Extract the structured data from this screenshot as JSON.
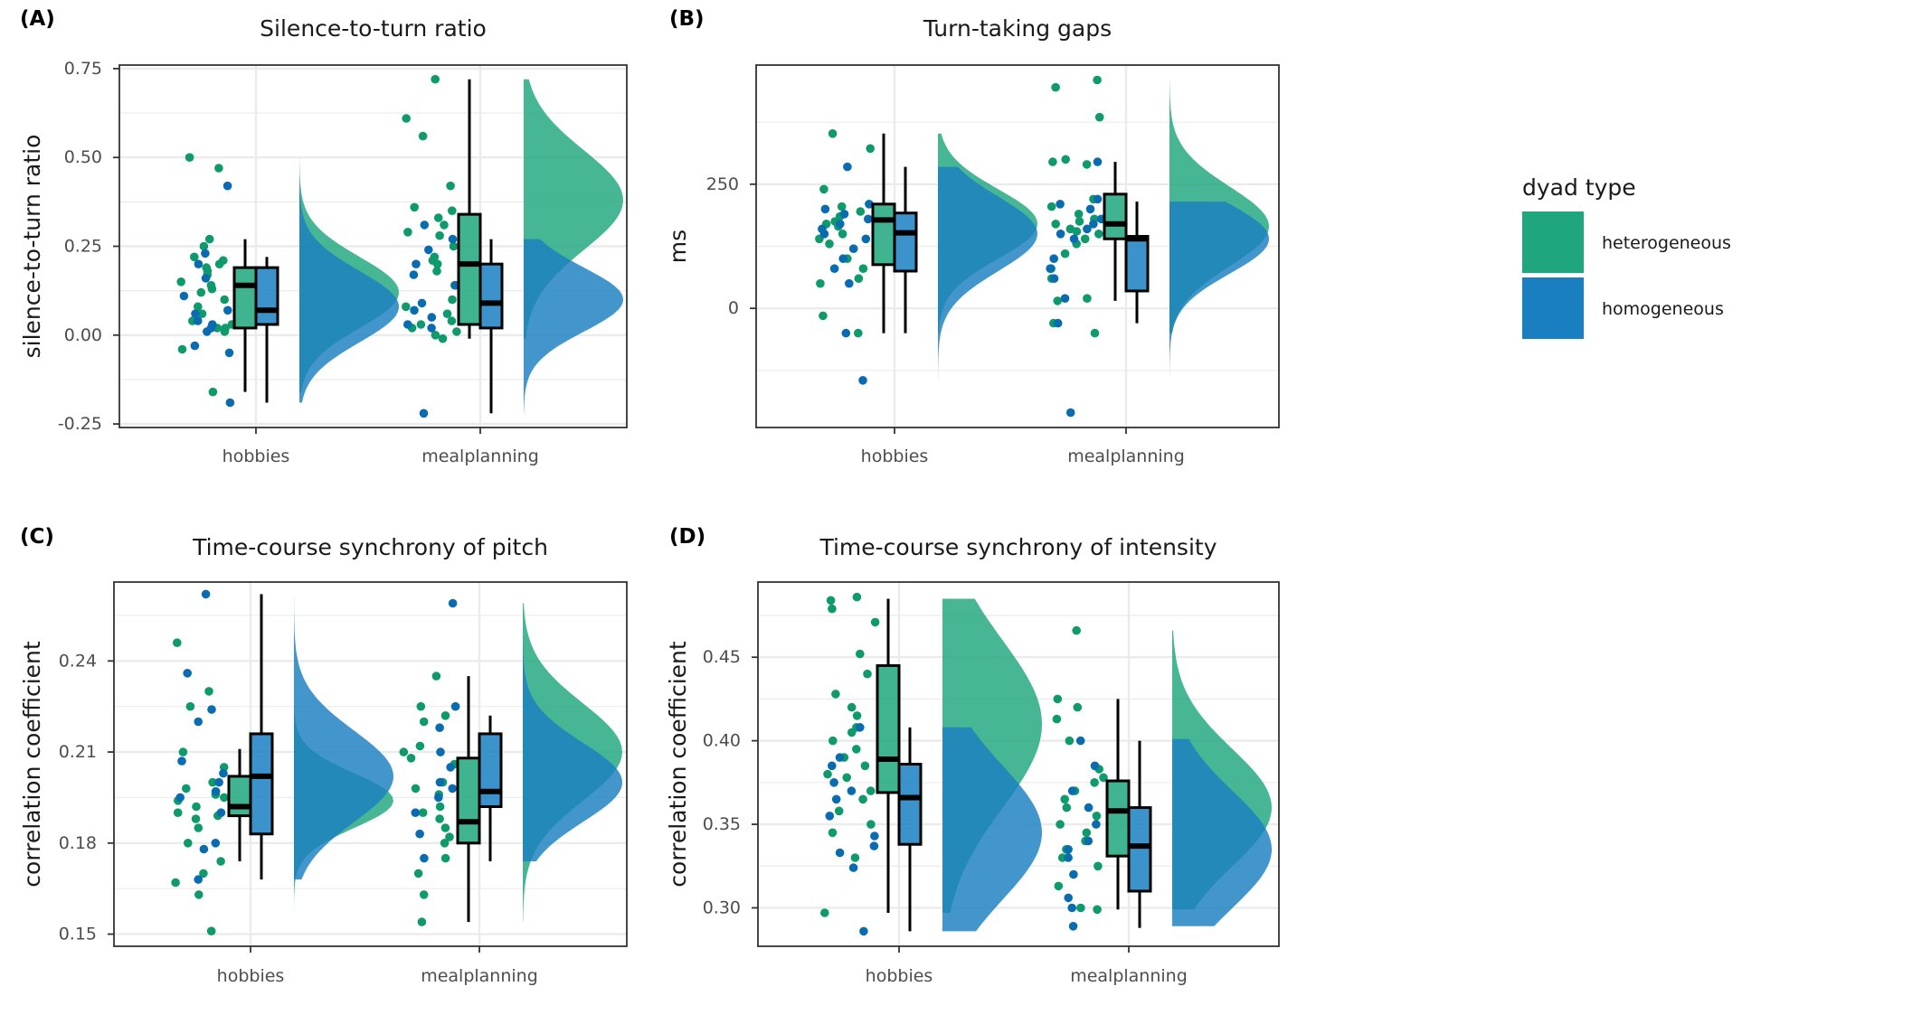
{
  "colors": {
    "heterogeneous": "#1fa67e",
    "homogeneous": "#1a7fc1",
    "point_het": "#0e9a6c",
    "point_hom": "#0a6cb0"
  },
  "legend": {
    "title": "dyad type",
    "items": [
      {
        "label": "heterogeneous",
        "color": "#1fa67e"
      },
      {
        "label": "homogeneous",
        "color": "#1a7fc1"
      }
    ]
  },
  "chart_data": [
    {
      "tag": "(A)",
      "type": "raincloud",
      "title": "Silence-to-turn ratio",
      "xlabel": "",
      "ylabel": "silence-to-turn ratio",
      "categories": [
        "hobbies",
        "mealplanning"
      ],
      "ylim": [
        -0.26,
        0.76
      ],
      "yticks": [
        -0.25,
        0.0,
        0.25,
        0.5,
        0.75
      ],
      "tick_labels": [
        "-0.25",
        "0.00",
        "0.25",
        "0.50",
        "0.75"
      ],
      "series": [
        {
          "name": "heterogeneous",
          "box": [
            {
              "min": -0.16,
              "q1": 0.02,
              "median": 0.14,
              "q3": 0.19,
              "max": 0.27
            },
            {
              "min": -0.01,
              "q1": 0.03,
              "median": 0.2,
              "q3": 0.34,
              "max": 0.72
            }
          ],
          "density": [
            {
              "min": -0.16,
              "max": 0.5,
              "peak": 0.12,
              "sd": 0.1
            },
            {
              "min": -0.01,
              "max": 0.72,
              "peak": 0.38,
              "sd": 0.14
            }
          ],
          "points": [
            [
              0.5,
              0.47,
              0.27,
              0.25,
              0.22,
              0.21,
              0.2,
              0.19,
              0.18,
              0.17,
              0.15,
              0.14,
              0.13,
              0.12,
              0.1,
              0.08,
              0.06,
              0.04,
              0.03,
              0.02,
              0.02,
              0.01,
              -0.04,
              -0.16
            ],
            [
              0.72,
              0.61,
              0.56,
              0.42,
              0.36,
              0.35,
              0.33,
              0.31,
              0.29,
              0.28,
              0.25,
              0.22,
              0.21,
              0.2,
              0.18,
              0.14,
              0.1,
              0.08,
              0.06,
              0.04,
              0.03,
              0.02,
              0.01,
              0.0,
              -0.01
            ]
          ]
        },
        {
          "name": "homogeneous",
          "box": [
            {
              "min": -0.19,
              "q1": 0.03,
              "median": 0.07,
              "q3": 0.19,
              "max": 0.22
            },
            {
              "min": -0.22,
              "q1": 0.02,
              "median": 0.09,
              "q3": 0.2,
              "max": 0.27
            }
          ],
          "density": [
            {
              "min": -0.19,
              "max": 0.42,
              "peak": 0.08,
              "sd": 0.1
            },
            {
              "min": -0.22,
              "max": 0.27,
              "peak": 0.1,
              "sd": 0.09
            }
          ],
          "points": [
            [
              0.42,
              0.23,
              0.2,
              0.16,
              0.11,
              0.07,
              0.06,
              0.04,
              0.03,
              0.02,
              0.01,
              -0.03,
              -0.05,
              -0.19
            ],
            [
              0.31,
              0.27,
              0.24,
              0.2,
              0.17,
              0.14,
              0.09,
              0.07,
              0.05,
              0.03,
              0.02,
              -0.22
            ]
          ]
        }
      ]
    },
    {
      "tag": "(B)",
      "type": "raincloud",
      "title": "Turn-taking gaps",
      "xlabel": "",
      "ylabel": "ms",
      "categories": [
        "hobbies",
        "mealplanning"
      ],
      "ylim": [
        -240,
        490
      ],
      "yticks": [
        0,
        250
      ],
      "tick_labels": [
        "0",
        "250"
      ],
      "series": [
        {
          "name": "heterogeneous",
          "box": [
            {
              "min": -50,
              "q1": 88,
              "median": 178,
              "q3": 210,
              "max": 352
            },
            {
              "min": 15,
              "q1": 140,
              "median": 170,
              "q3": 230,
              "max": 295
            }
          ],
          "density": [
            {
              "min": -50,
              "max": 352,
              "peak": 170,
              "sd": 70
            },
            {
              "min": -50,
              "max": 460,
              "peak": 165,
              "sd": 80
            }
          ],
          "points": [
            [
              352,
              322,
              240,
              205,
              195,
              185,
              175,
              170,
              165,
              150,
              140,
              130,
              100,
              80,
              60,
              50,
              -15,
              -50
            ],
            [
              460,
              445,
              385,
              300,
              295,
              290,
              220,
              205,
              190,
              180,
              175,
              170,
              160,
              155,
              150,
              140,
              130,
              110,
              80,
              60,
              20,
              15,
              -30,
              -50
            ]
          ]
        },
        {
          "name": "homogeneous",
          "box": [
            {
              "min": -50,
              "q1": 75,
              "median": 152,
              "q3": 192,
              "max": 285
            },
            {
              "min": -30,
              "q1": 35,
              "median": 140,
              "q3": 145,
              "max": 215
            }
          ],
          "density": [
            {
              "min": -145,
              "max": 285,
              "peak": 150,
              "sd": 75
            },
            {
              "min": -210,
              "max": 215,
              "peak": 140,
              "sd": 70
            }
          ],
          "points": [
            [
              285,
              210,
              200,
              190,
              180,
              170,
              160,
              150,
              140,
              120,
              100,
              80,
              50,
              -50,
              -145
            ],
            [
              295,
              220,
              210,
              200,
              180,
              170,
              160,
              150,
              140,
              100,
              80,
              60,
              20,
              -30,
              -210
            ]
          ]
        }
      ]
    },
    {
      "tag": "(C)",
      "type": "raincloud",
      "title": "Time-course synchrony of pitch",
      "xlabel": "",
      "ylabel": "correlation coefficient",
      "categories": [
        "hobbies",
        "mealplanning"
      ],
      "ylim": [
        0.146,
        0.266
      ],
      "yticks": [
        0.15,
        0.18,
        0.21,
        0.24
      ],
      "tick_labels": [
        "0.15",
        "0.18",
        "0.21",
        "0.24"
      ],
      "series": [
        {
          "name": "heterogeneous",
          "box": [
            {
              "min": 0.174,
              "q1": 0.189,
              "median": 0.192,
              "q3": 0.202,
              "max": 0.211
            },
            {
              "min": 0.154,
              "q1": 0.18,
              "median": 0.187,
              "q3": 0.208,
              "max": 0.235
            }
          ],
          "density": [
            {
              "min": 0.151,
              "max": 0.246,
              "peak": 0.194,
              "sd": 0.009
            },
            {
              "min": 0.154,
              "max": 0.259,
              "peak": 0.21,
              "sd": 0.016
            }
          ],
          "points": [
            [
              0.246,
              0.23,
              0.225,
              0.21,
              0.205,
              0.2,
              0.198,
              0.196,
              0.195,
              0.194,
              0.192,
              0.19,
              0.189,
              0.188,
              0.185,
              0.18,
              0.174,
              0.17,
              0.167,
              0.163,
              0.151
            ],
            [
              0.235,
              0.225,
              0.222,
              0.22,
              0.212,
              0.21,
              0.208,
              0.206,
              0.2,
              0.198,
              0.196,
              0.192,
              0.19,
              0.188,
              0.185,
              0.182,
              0.18,
              0.175,
              0.17,
              0.163,
              0.154
            ]
          ]
        },
        {
          "name": "homogeneous",
          "box": [
            {
              "min": 0.168,
              "q1": 0.183,
              "median": 0.202,
              "q3": 0.216,
              "max": 0.262
            },
            {
              "min": 0.174,
              "q1": 0.192,
              "median": 0.197,
              "q3": 0.216,
              "max": 0.222
            }
          ],
          "density": [
            {
              "min": 0.168,
              "max": 0.262,
              "peak": 0.202,
              "sd": 0.015
            },
            {
              "min": 0.174,
              "max": 0.259,
              "peak": 0.2,
              "sd": 0.013
            }
          ],
          "points": [
            [
              0.262,
              0.236,
              0.224,
              0.22,
              0.207,
              0.203,
              0.2,
              0.197,
              0.195,
              0.19,
              0.18,
              0.178,
              0.168
            ],
            [
              0.259,
              0.225,
              0.218,
              0.21,
              0.205,
              0.2,
              0.198,
              0.195,
              0.19,
              0.183,
              0.175
            ]
          ]
        }
      ]
    },
    {
      "tag": "(D)",
      "type": "raincloud",
      "title": "Time-course synchrony of intensity",
      "xlabel": "",
      "ylabel": "correlation coefficient",
      "categories": [
        "hobbies",
        "mealplanning"
      ],
      "ylim": [
        0.277,
        0.495
      ],
      "yticks": [
        0.3,
        0.35,
        0.4,
        0.45
      ],
      "tick_labels": [
        "0.30",
        "0.35",
        "0.40",
        "0.45"
      ],
      "series": [
        {
          "name": "heterogeneous",
          "box": [
            {
              "min": 0.297,
              "q1": 0.369,
              "median": 0.389,
              "q3": 0.445,
              "max": 0.485
            },
            {
              "min": 0.299,
              "q1": 0.331,
              "median": 0.358,
              "q3": 0.376,
              "max": 0.425
            }
          ],
          "density": [
            {
              "min": 0.297,
              "max": 0.485,
              "peak": 0.41,
              "sd": 0.05
            },
            {
              "min": 0.299,
              "max": 0.466,
              "peak": 0.36,
              "sd": 0.035
            }
          ],
          "points": [
            [
              0.486,
              0.484,
              0.479,
              0.471,
              0.452,
              0.44,
              0.428,
              0.42,
              0.415,
              0.408,
              0.405,
              0.4,
              0.395,
              0.39,
              0.385,
              0.38,
              0.378,
              0.37,
              0.365,
              0.358,
              0.35,
              0.345,
              0.33,
              0.297
            ],
            [
              0.466,
              0.425,
              0.42,
              0.413,
              0.4,
              0.383,
              0.378,
              0.375,
              0.37,
              0.365,
              0.36,
              0.355,
              0.35,
              0.345,
              0.34,
              0.335,
              0.33,
              0.325,
              0.313,
              0.3,
              0.299
            ]
          ]
        },
        {
          "name": "homogeneous",
          "box": [
            {
              "min": 0.286,
              "q1": 0.338,
              "median": 0.366,
              "q3": 0.386,
              "max": 0.408
            },
            {
              "min": 0.288,
              "q1": 0.31,
              "median": 0.337,
              "q3": 0.36,
              "max": 0.4
            }
          ],
          "density": [
            {
              "min": 0.286,
              "max": 0.408,
              "peak": 0.345,
              "sd": 0.04
            },
            {
              "min": 0.289,
              "max": 0.401,
              "peak": 0.335,
              "sd": 0.035
            }
          ],
          "points": [
            [
              0.408,
              0.39,
              0.385,
              0.375,
              0.37,
              0.365,
              0.355,
              0.343,
              0.337,
              0.333,
              0.324,
              0.286
            ],
            [
              0.4,
              0.385,
              0.37,
              0.36,
              0.35,
              0.34,
              0.335,
              0.33,
              0.32,
              0.306,
              0.3,
              0.289
            ]
          ]
        }
      ]
    }
  ]
}
